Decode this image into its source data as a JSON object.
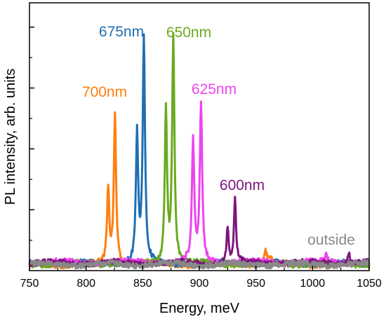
{
  "chart_data": {
    "type": "line",
    "xlabel": "Energy, meV",
    "ylabel": "PL intensity, arb. units",
    "xlim": [
      750,
      1050
    ],
    "ylim": [
      0,
      1.1
    ],
    "x_ticks": [
      "750",
      "800",
      "850",
      "900",
      "950",
      "1000",
      "1050"
    ],
    "y_ticks_labeled": false,
    "grid": false,
    "series": [
      {
        "name": "700nm",
        "color": "#ff7f0e",
        "peaks": [
          {
            "x": 819.5,
            "height": 0.3,
            "width": 1.2
          },
          {
            "x": 825.5,
            "height": 0.62,
            "width": 1.2
          },
          {
            "x": 958.5,
            "height": 0.055,
            "width": 1.5
          },
          {
            "x": 963,
            "height": 0.03,
            "width": 1.5
          }
        ]
      },
      {
        "name": "675nm",
        "color": "#1f6fb2",
        "peaks": [
          {
            "x": 845,
            "height": 0.52,
            "width": 1.2
          },
          {
            "x": 851,
            "height": 0.92,
            "width": 1.2
          }
        ]
      },
      {
        "name": "650nm",
        "color": "#6aaa1e",
        "peaks": [
          {
            "x": 870.5,
            "height": 0.63,
            "width": 1.2
          },
          {
            "x": 877,
            "height": 0.93,
            "width": 1.2
          }
        ]
      },
      {
        "name": "625nm",
        "color": "#ee44ee",
        "peaks": [
          {
            "x": 894.5,
            "height": 0.5,
            "width": 1.2
          },
          {
            "x": 901.5,
            "height": 0.65,
            "width": 1.2
          },
          {
            "x": 1012,
            "height": 0.03,
            "width": 1.2
          }
        ]
      },
      {
        "name": "600nm",
        "color": "#7f157f",
        "peaks": [
          {
            "x": 925,
            "height": 0.15,
            "width": 1.1
          },
          {
            "x": 931.5,
            "height": 0.26,
            "width": 1.1
          },
          {
            "x": 1032,
            "height": 0.05,
            "width": 0.9
          }
        ]
      },
      {
        "name": "outside",
        "color": "#888888",
        "peaks": []
      }
    ]
  }
}
